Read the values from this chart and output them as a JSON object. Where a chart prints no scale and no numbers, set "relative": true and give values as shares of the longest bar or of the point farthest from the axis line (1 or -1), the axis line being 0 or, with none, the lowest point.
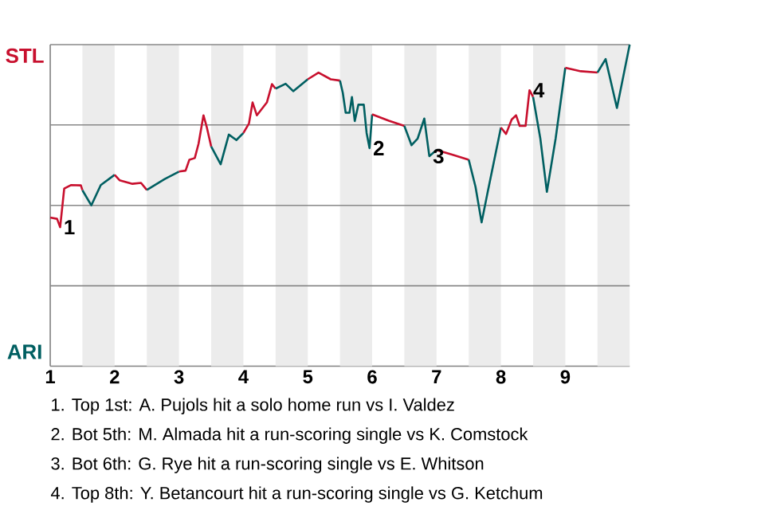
{
  "chart_data": {
    "type": "line",
    "relative": true,
    "xlim": [
      1,
      10
    ],
    "xticks": [
      1,
      2,
      3,
      4,
      5,
      6,
      7,
      8,
      9
    ],
    "bands": [
      {
        "axis": "x",
        "from": 1.5,
        "to": 2,
        "color": "#ececec"
      },
      {
        "axis": "x",
        "from": 2.5,
        "to": 3,
        "color": "#ececec"
      },
      {
        "axis": "x",
        "from": 3.5,
        "to": 4,
        "color": "#ececec"
      },
      {
        "axis": "x",
        "from": 4.5,
        "to": 5,
        "color": "#ececec"
      },
      {
        "axis": "x",
        "from": 5.5,
        "to": 6,
        "color": "#ececec"
      },
      {
        "axis": "x",
        "from": 6.5,
        "to": 7,
        "color": "#ececec"
      },
      {
        "axis": "x",
        "from": 7.5,
        "to": 8,
        "color": "#ececec"
      },
      {
        "axis": "x",
        "from": 8.5,
        "to": 9,
        "color": "#ececec"
      },
      {
        "axis": "x",
        "from": 9.5,
        "to": 10,
        "color": "#ececec"
      }
    ],
    "ref_lines": [
      {
        "axis": "y",
        "value": 0.25,
        "color": "#888888"
      },
      {
        "axis": "y",
        "value": 0.5,
        "color": "#888888"
      },
      {
        "axis": "y",
        "value": 0.75,
        "color": "#888888"
      },
      {
        "axis": "y",
        "value": 1.0,
        "color": "#888888"
      }
    ],
    "series": [
      {
        "color": "#c8102e",
        "x": [
          1,
          1.106,
          1.154,
          1.217,
          1.32,
          1.476,
          1.5
        ],
        "values": [
          0.462,
          0.458,
          0.432,
          0.552,
          0.563,
          0.562,
          0.547
        ]
      },
      {
        "color": "#005f61",
        "x": [
          1.5,
          1.638,
          1.785,
          2
        ],
        "values": [
          0.547,
          0.5,
          0.563,
          0.595
        ]
      },
      {
        "color": "#c8102e",
        "x": [
          2,
          2.077,
          2.277,
          2.41,
          2.5
        ],
        "values": [
          0.595,
          0.578,
          0.567,
          0.57,
          0.548
        ]
      },
      {
        "color": "#005f61",
        "x": [
          2.5,
          2.779,
          3
        ],
        "values": [
          0.548,
          0.582,
          0.605
        ]
      },
      {
        "color": "#c8102e",
        "x": [
          3,
          3.102,
          3.161,
          3.245,
          3.304,
          3.38,
          3.429,
          3.5
        ],
        "values": [
          0.605,
          0.608,
          0.642,
          0.647,
          0.692,
          0.78,
          0.745,
          0.683
        ]
      },
      {
        "color": "#005f61",
        "x": [
          3.5,
          3.647,
          3.774,
          3.891,
          4
        ],
        "values": [
          0.683,
          0.628,
          0.72,
          0.703,
          0.725
        ]
      },
      {
        "color": "#c8102e",
        "x": [
          4,
          4.087,
          4.143,
          4.209,
          4.365,
          4.444,
          4.5
        ],
        "values": [
          0.725,
          0.755,
          0.82,
          0.78,
          0.82,
          0.877,
          0.863
        ]
      },
      {
        "color": "#005f61",
        "x": [
          4.5,
          4.656,
          4.774,
          5
        ],
        "values": [
          0.863,
          0.878,
          0.855,
          0.892
        ]
      },
      {
        "color": "#c8102e",
        "x": [
          5,
          5.167,
          5.357,
          5.5
        ],
        "values": [
          0.892,
          0.913,
          0.892,
          0.888
        ]
      },
      {
        "color": "#005f61",
        "x": [
          5.5,
          5.544,
          5.589,
          5.648,
          5.686,
          5.73,
          5.786,
          5.87,
          5.914,
          5.959,
          6
        ],
        "values": [
          0.888,
          0.85,
          0.788,
          0.788,
          0.837,
          0.762,
          0.813,
          0.813,
          0.725,
          0.678,
          0.783
        ]
      },
      {
        "color": "#c8102e",
        "x": [
          6,
          6.259,
          6.5
        ],
        "values": [
          0.783,
          0.763,
          0.747
        ]
      },
      {
        "color": "#005f61",
        "x": [
          6.5,
          6.612,
          6.707,
          6.81,
          6.888,
          7
        ],
        "values": [
          0.747,
          0.687,
          0.708,
          0.77,
          0.653,
          0.672
        ]
      },
      {
        "color": "#c8102e",
        "x": [
          7,
          7.241,
          7.5
        ],
        "values": [
          0.672,
          0.658,
          0.642
        ]
      },
      {
        "color": "#005f61",
        "x": [
          7.5,
          7.605,
          7.7,
          7.795,
          8
        ],
        "values": [
          0.642,
          0.558,
          0.447,
          0.542,
          0.742
        ]
      },
      {
        "color": "#c8102e",
        "x": [
          8,
          8.08,
          8.167,
          8.235,
          8.291,
          8.383,
          8.444,
          8.5
        ],
        "values": [
          0.742,
          0.722,
          0.767,
          0.78,
          0.747,
          0.747,
          0.858,
          0.837
        ]
      },
      {
        "color": "#005f61",
        "x": [
          8.5,
          8.612,
          8.714,
          8.85,
          9
        ],
        "values": [
          0.837,
          0.708,
          0.542,
          0.708,
          0.928
        ]
      },
      {
        "color": "#c8102e",
        "x": [
          9,
          9.241,
          9.5
        ],
        "values": [
          0.928,
          0.917,
          0.913
        ]
      },
      {
        "color": "#005f61",
        "x": [
          9.5,
          9.626,
          9.802,
          10
        ],
        "values": [
          0.913,
          0.955,
          0.803,
          1.0
        ]
      }
    ],
    "annotations": [
      "STL",
      "ARI",
      {
        "text": "1",
        "x": 1.154,
        "y": 0.432
      },
      {
        "text": "2",
        "x": 5.959,
        "y": 0.678
      },
      {
        "text": "3",
        "x": 6.888,
        "y": 0.653
      },
      {
        "text": "4",
        "x": 8.444,
        "y": 0.858
      },
      "1. Top 1st: A. Pujols hit a solo home run vs I. Valdez",
      "2. Bot 5th: M. Almada hit a run-scoring single vs K. Comstock",
      "3. Bot 6th: G. Rye hit a run-scoring single vs E. Whitson",
      "4. Top 8th: Y. Betancourt hit a run-scoring single vs G. Ketchum"
    ]
  }
}
